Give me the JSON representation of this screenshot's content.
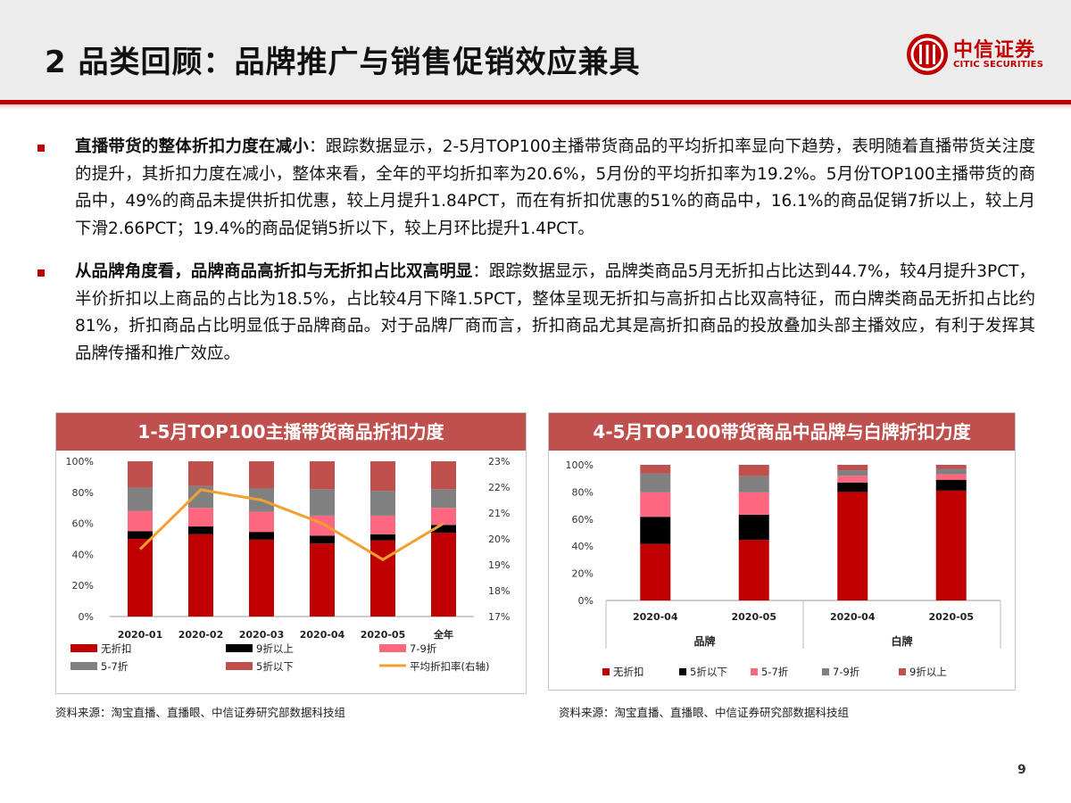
{
  "header": {
    "title": "2 品类回顾：品牌推广与销售促销效应兼具",
    "logo_cn": "中信证券",
    "logo_en": "CITIC SECURITIES"
  },
  "bullets": [
    {
      "bold": "直播带货的整体折扣力度在减小",
      "text": "：跟踪数据显示，2-5月TOP100主播带货商品的平均折扣率显向下趋势，表明随着直播带货关注度的提升，其折扣力度在减小，整体来看，全年的平均折扣率为20.6%，5月份的平均折扣率为19.2%。5月份TOP100主播带货的商品中，49%的商品未提供折扣优惠，较上月提升1.84PCT，而在有折扣优惠的51%的商品中，16.1%的商品促销7折以上，较上月下滑2.66PCT；19.4%的商品促销5折以下，较上月环比提升1.4PCT。"
    },
    {
      "bold": "从品牌角度看，品牌商品高折扣与无折扣占比双高明显",
      "text": "：跟踪数据显示，品牌类商品5月无折扣占比达到44.7%，较4月提升3PCT，半价折扣以上商品的占比为18.5%，占比较4月下降1.5PCT，整体呈现无折扣与高折扣占比双高特征，而白牌类商品无折扣占比约81%，折扣商品占比明显低于品牌商品。对于品牌厂商而言，折扣商品尤其是高折扣商品的投放叠加头部主播效应，有利于发挥其品牌传播和推广效应。"
    }
  ],
  "chart1": {
    "header": "1-5月TOP100主播带货商品折扣力度",
    "source": "资料来源：淘宝直播、直播眼、中信证券研究部数据科技组"
  },
  "chart2": {
    "header": "4-5月TOP100带货商品中品牌与白牌折扣力度",
    "source": "资料来源：淘宝直播、直播眼、中信证券研究部数据科技组"
  },
  "page_number": "9",
  "chart_data": [
    {
      "type": "bar",
      "stacked": true,
      "categories": [
        "2020-01",
        "2020-02",
        "2020-03",
        "2020-04",
        "2020-05",
        "全年"
      ],
      "y_ticks": [
        "0%",
        "20%",
        "40%",
        "60%",
        "80%",
        "100%"
      ],
      "ylim": [
        0,
        100
      ],
      "y2_ticks": [
        "17%",
        "18%",
        "19%",
        "20%",
        "21%",
        "22%",
        "23%"
      ],
      "y2lim": [
        17,
        23
      ],
      "series": [
        {
          "name": "无折扣",
          "values": [
            50,
            53,
            49.5,
            47,
            49,
            54
          ],
          "color": "#c00000"
        },
        {
          "name": "9折以上",
          "values": [
            5,
            5,
            5,
            5,
            4,
            5
          ],
          "color": "#000000"
        },
        {
          "name": "7-9折",
          "values": [
            13,
            12,
            13,
            13,
            12,
            11
          ],
          "color": "#ff6680"
        },
        {
          "name": "5-7折",
          "values": [
            15,
            14,
            15,
            17,
            16,
            12
          ],
          "color": "#808080"
        },
        {
          "name": "5折以下",
          "values": [
            17,
            16,
            17.5,
            18,
            19,
            18
          ],
          "color": "#c0504d"
        }
      ],
      "line_series": {
        "name": "平均折扣率(右轴)",
        "axis": "right",
        "values": [
          19.6,
          21.9,
          21.5,
          20.6,
          19.2,
          20.6
        ],
        "color": "#f4a030"
      }
    },
    {
      "type": "bar",
      "stacked": true,
      "categories": [
        "2020-04",
        "2020-05",
        "2020-04",
        "2020-05"
      ],
      "groups": [
        "品牌",
        "白牌"
      ],
      "y_ticks": [
        "0%",
        "20%",
        "40%",
        "60%",
        "80%",
        "100%"
      ],
      "ylim": [
        0,
        100
      ],
      "series": [
        {
          "name": "无折扣",
          "values": [
            41.7,
            44.7,
            80,
            81
          ],
          "color": "#c00000"
        },
        {
          "name": "5折以下",
          "values": [
            20,
            18.5,
            7,
            8
          ],
          "color": "#000000"
        },
        {
          "name": "5-7折",
          "values": [
            18,
            16.5,
            5,
            4
          ],
          "color": "#ff6680"
        },
        {
          "name": "7-9折",
          "values": [
            14,
            12,
            4,
            4
          ],
          "color": "#808080"
        },
        {
          "name": "9折以上",
          "values": [
            6.3,
            8.3,
            4,
            3
          ],
          "color": "#c0504d"
        }
      ]
    }
  ]
}
